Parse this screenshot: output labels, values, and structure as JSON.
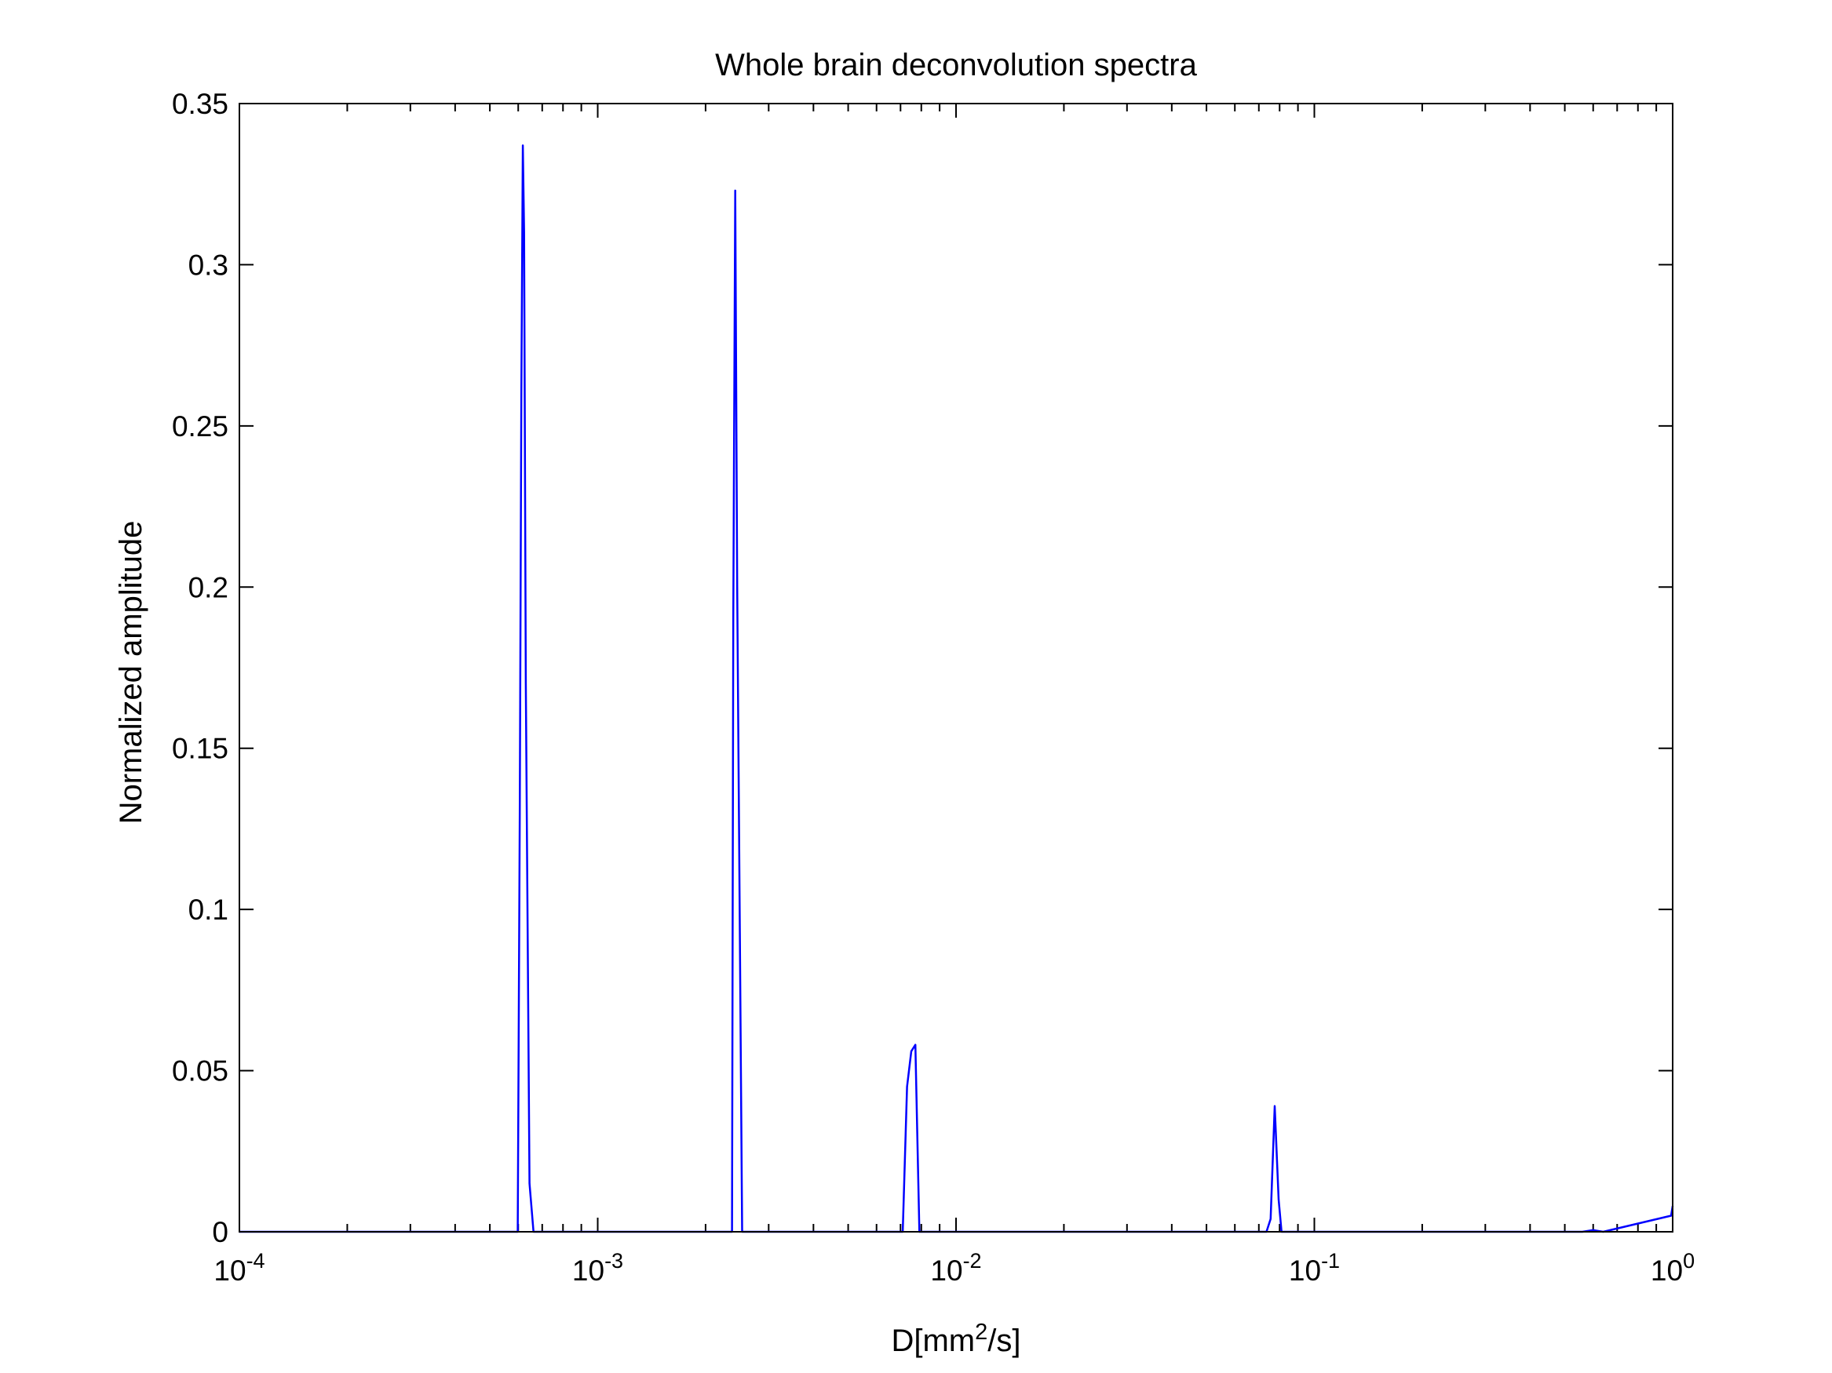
{
  "chart_data": {
    "type": "line",
    "title": "Whole brain deconvolution spectra",
    "xlabel": {
      "base": "D[mm",
      "superscript": "2",
      "tail": "/s]"
    },
    "ylabel": "Normalized amplitude",
    "xscale": "log",
    "xlim": [
      0.0001,
      1
    ],
    "ylim": [
      0,
      0.35
    ],
    "grid": false,
    "legend": "none",
    "x_ticks": [
      {
        "value": 0.0001,
        "base": "10",
        "exponent": "-4"
      },
      {
        "value": 0.001,
        "base": "10",
        "exponent": "-3"
      },
      {
        "value": 0.01,
        "base": "10",
        "exponent": "-2"
      },
      {
        "value": 0.1,
        "base": "10",
        "exponent": "-1"
      },
      {
        "value": 1,
        "base": "10",
        "exponent": "0"
      }
    ],
    "y_ticks": [
      {
        "value": 0,
        "label": "0"
      },
      {
        "value": 0.05,
        "label": "0.05"
      },
      {
        "value": 0.1,
        "label": "0.1"
      },
      {
        "value": 0.15,
        "label": "0.15"
      },
      {
        "value": 0.2,
        "label": "0.2"
      },
      {
        "value": 0.25,
        "label": "0.25"
      },
      {
        "value": 0.3,
        "label": "0.3"
      },
      {
        "value": 0.35,
        "label": "0.35"
      }
    ],
    "series": [
      {
        "color": "#0000ff",
        "points": [
          [
            0.0001,
            0
          ],
          [
            0.000598,
            0
          ],
          [
            0.000606,
            0.13
          ],
          [
            0.000612,
            0.26
          ],
          [
            0.000618,
            0.337
          ],
          [
            0.000623,
            0.31
          ],
          [
            0.00063,
            0.17
          ],
          [
            0.000645,
            0.015
          ],
          [
            0.000662,
            0
          ],
          [
            0.00237,
            0
          ],
          [
            0.00239,
            0.19
          ],
          [
            0.00242,
            0.323
          ],
          [
            0.00245,
            0.2
          ],
          [
            0.00253,
            0
          ],
          [
            0.0071,
            0
          ],
          [
            0.0073,
            0.045
          ],
          [
            0.0075,
            0.056
          ],
          [
            0.0077,
            0.058
          ],
          [
            0.0079,
            0
          ],
          [
            0.0735,
            0
          ],
          [
            0.0755,
            0.004
          ],
          [
            0.0775,
            0.039
          ],
          [
            0.0795,
            0.01
          ],
          [
            0.081,
            0
          ],
          [
            0.56,
            0
          ],
          [
            0.6,
            0.0005
          ],
          [
            0.64,
            0
          ],
          [
            0.99,
            0.005
          ],
          [
            1,
            0.008
          ]
        ]
      }
    ]
  }
}
